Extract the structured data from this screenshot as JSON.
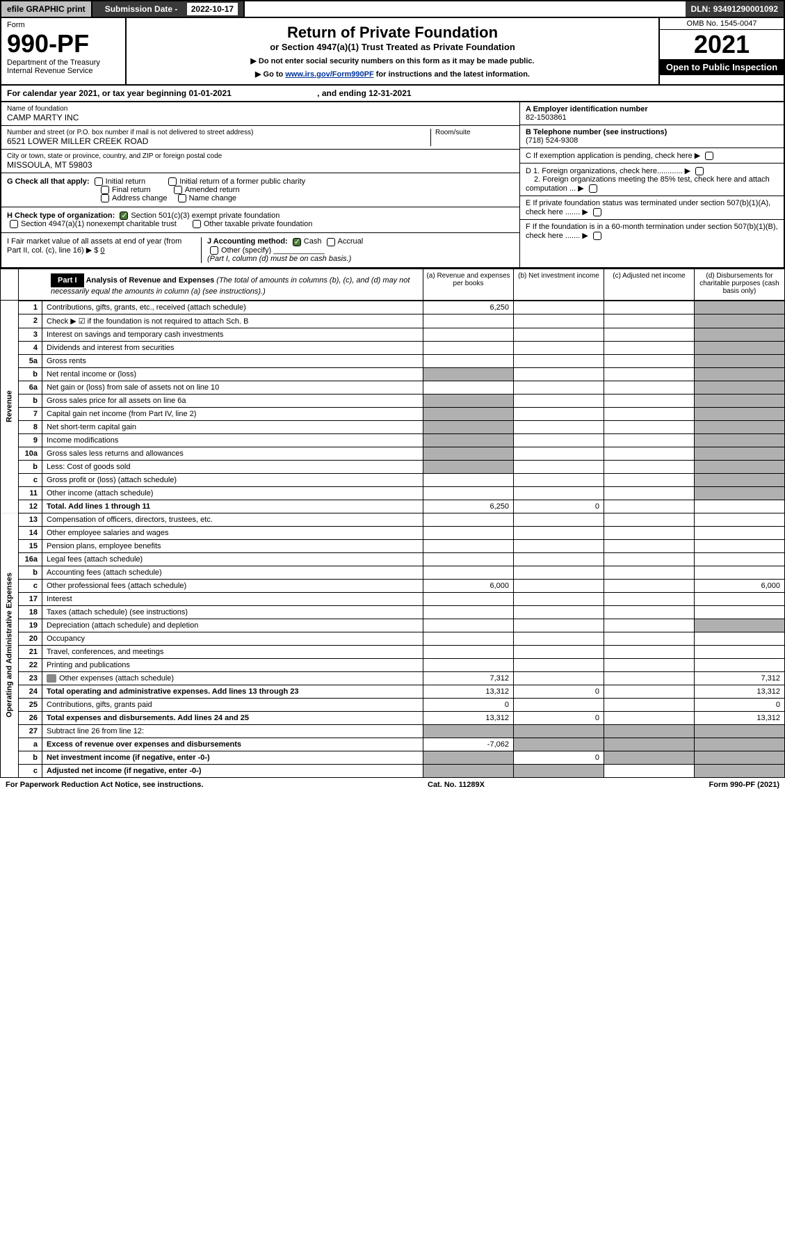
{
  "topbar": {
    "efile": "efile GRAPHIC print",
    "subdate_label": "Submission Date -",
    "subdate": "2022-10-17",
    "dln_label": "DLN:",
    "dln": "93491290001092"
  },
  "header": {
    "form_word": "Form",
    "form_number": "990-PF",
    "dept1": "Department of the Treasury",
    "dept2": "Internal Revenue Service",
    "title": "Return of Private Foundation",
    "subtitle": "or Section 4947(a)(1) Trust Treated as Private Foundation",
    "inst1": "▶ Do not enter social security numbers on this form as it may be made public.",
    "inst2_pre": "▶ Go to ",
    "inst2_link": "www.irs.gov/Form990PF",
    "inst2_post": " for instructions and the latest information.",
    "omb": "OMB No. 1545-0047",
    "year": "2021",
    "open": "Open to Public Inspection"
  },
  "calyear": {
    "text": "For calendar year 2021, or tax year beginning 01-01-2021",
    "ending": ", and ending 12-31-2021"
  },
  "identity": {
    "name_label": "Name of foundation",
    "name": "CAMP MARTY INC",
    "addr_label": "Number and street (or P.O. box number if mail is not delivered to street address)",
    "addr": "6521 LOWER MILLER CREEK ROAD",
    "room_label": "Room/suite",
    "city_label": "City or town, state or province, country, and ZIP or foreign postal code",
    "city": "MISSOULA, MT  59803",
    "ein_label": "A Employer identification number",
    "ein": "82-1503861",
    "phone_label": "B Telephone number (see instructions)",
    "phone": "(718) 524-9308",
    "c_label": "C If exemption application is pending, check here",
    "d1": "D 1. Foreign organizations, check here............",
    "d2": "2. Foreign organizations meeting the 85% test, check here and attach computation ...",
    "e": "E  If private foundation status was terminated under section 507(b)(1)(A), check here .......",
    "f": "F  If the foundation is in a 60-month termination under section 507(b)(1)(B), check here .......",
    "g_label": "G Check all that apply:",
    "g_opts": [
      "Initial return",
      "Initial return of a former public charity",
      "Final return",
      "Amended return",
      "Address change",
      "Name change"
    ],
    "h_label": "H Check type of organization:",
    "h1": "Section 501(c)(3) exempt private foundation",
    "h2": "Section 4947(a)(1) nonexempt charitable trust",
    "h3": "Other taxable private foundation",
    "i_label": "I Fair market value of all assets at end of year (from Part II, col. (c), line 16) ▶ $",
    "i_val": "0",
    "j_label": "J Accounting method:",
    "j_cash": "Cash",
    "j_accrual": "Accrual",
    "j_other": "Other (specify)",
    "j_note": "(Part I, column (d) must be on cash basis.)"
  },
  "part1": {
    "label": "Part I",
    "title": "Analysis of Revenue and Expenses",
    "note": "(The total of amounts in columns (b), (c), and (d) may not necessarily equal the amounts in column (a) (see instructions).)",
    "col_a": "(a)   Revenue and expenses per books",
    "col_b": "(b)   Net investment income",
    "col_c": "(c)   Adjusted net income",
    "col_d": "(d)   Disbursements for charitable purposes (cash basis only)"
  },
  "sections": {
    "revenue": "Revenue",
    "opexp": "Operating and Administrative Expenses"
  },
  "lines": [
    {
      "n": "1",
      "d": "Contributions, gifts, grants, etc., received (attach schedule)",
      "a": "6,250"
    },
    {
      "n": "2",
      "d": "Check ▶ ☑ if the foundation is not required to attach Sch. B",
      "a": ""
    },
    {
      "n": "3",
      "d": "Interest on savings and temporary cash investments",
      "a": ""
    },
    {
      "n": "4",
      "d": "Dividends and interest from securities",
      "a": ""
    },
    {
      "n": "5a",
      "d": "Gross rents",
      "a": ""
    },
    {
      "n": "b",
      "d": "Net rental income or (loss)",
      "a": "",
      "shade_a": true
    },
    {
      "n": "6a",
      "d": "Net gain or (loss) from sale of assets not on line 10",
      "a": ""
    },
    {
      "n": "b",
      "d": "Gross sales price for all assets on line 6a",
      "a": "",
      "shade_a": true
    },
    {
      "n": "7",
      "d": "Capital gain net income (from Part IV, line 2)",
      "a": "",
      "shade_a": true
    },
    {
      "n": "8",
      "d": "Net short-term capital gain",
      "a": "",
      "shade_a": true
    },
    {
      "n": "9",
      "d": "Income modifications",
      "a": "",
      "shade_a": true
    },
    {
      "n": "10a",
      "d": "Gross sales less returns and allowances",
      "a": "",
      "shade_a": true
    },
    {
      "n": "b",
      "d": "Less: Cost of goods sold",
      "a": "",
      "shade_a": true
    },
    {
      "n": "c",
      "d": "Gross profit or (loss) (attach schedule)",
      "a": ""
    },
    {
      "n": "11",
      "d": "Other income (attach schedule)",
      "a": ""
    },
    {
      "n": "12",
      "d": "Total. Add lines 1 through 11",
      "a": "6,250",
      "b": "0",
      "bold": true
    },
    {
      "n": "13",
      "d": "Compensation of officers, directors, trustees, etc.",
      "a": ""
    },
    {
      "n": "14",
      "d": "Other employee salaries and wages",
      "a": ""
    },
    {
      "n": "15",
      "d": "Pension plans, employee benefits",
      "a": ""
    },
    {
      "n": "16a",
      "d": "Legal fees (attach schedule)",
      "a": ""
    },
    {
      "n": "b",
      "d": "Accounting fees (attach schedule)",
      "a": ""
    },
    {
      "n": "c",
      "d": "Other professional fees (attach schedule)",
      "a": "6,000",
      "dd": "6,000"
    },
    {
      "n": "17",
      "d": "Interest",
      "a": ""
    },
    {
      "n": "18",
      "d": "Taxes (attach schedule) (see instructions)",
      "a": ""
    },
    {
      "n": "19",
      "d": "Depreciation (attach schedule) and depletion",
      "a": "",
      "shade_d": true
    },
    {
      "n": "20",
      "d": "Occupancy",
      "a": ""
    },
    {
      "n": "21",
      "d": "Travel, conferences, and meetings",
      "a": ""
    },
    {
      "n": "22",
      "d": "Printing and publications",
      "a": ""
    },
    {
      "n": "23",
      "d": "Other expenses (attach schedule)",
      "a": "7,312",
      "dd": "7,312",
      "attach": true
    },
    {
      "n": "24",
      "d": "Total operating and administrative expenses. Add lines 13 through 23",
      "a": "13,312",
      "b": "0",
      "dd": "13,312",
      "bold": true
    },
    {
      "n": "25",
      "d": "Contributions, gifts, grants paid",
      "a": "0",
      "dd": "0"
    },
    {
      "n": "26",
      "d": "Total expenses and disbursements. Add lines 24 and 25",
      "a": "13,312",
      "b": "0",
      "dd": "13,312",
      "bold": true
    },
    {
      "n": "27",
      "d": "Subtract line 26 from line 12:",
      "a": "",
      "shade_all": true
    },
    {
      "n": "a",
      "d": "Excess of revenue over expenses and disbursements",
      "a": "-7,062",
      "bold": true,
      "shade_bcd": true
    },
    {
      "n": "b",
      "d": "Net investment income (if negative, enter -0-)",
      "b": "0",
      "bold": true,
      "shade_a": true,
      "shade_cd": true
    },
    {
      "n": "c",
      "d": "Adjusted net income (if negative, enter -0-)",
      "bold": true,
      "shade_a": true,
      "shade_b": true,
      "shade_d": true
    }
  ],
  "footer": {
    "left": "For Paperwork Reduction Act Notice, see instructions.",
    "center": "Cat. No. 11289X",
    "right": "Form 990-PF (2021)"
  }
}
